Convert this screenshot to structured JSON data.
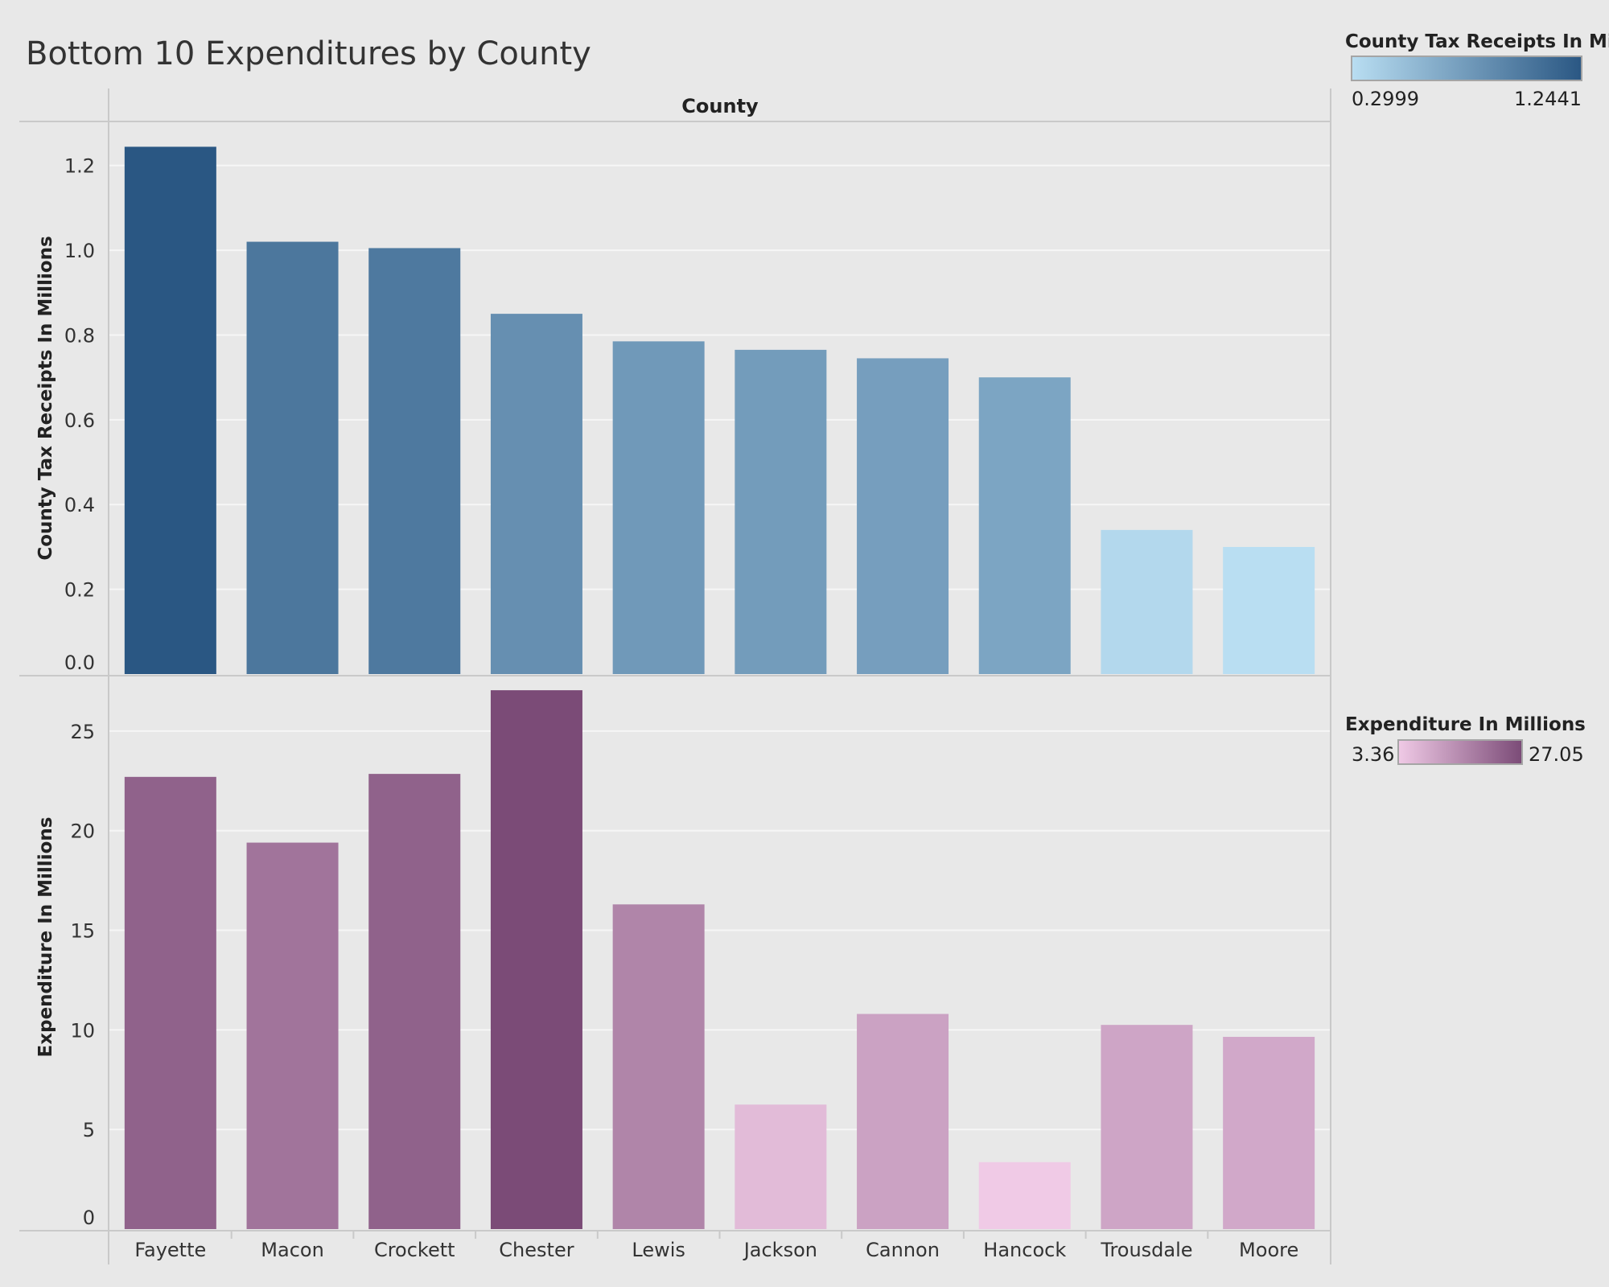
{
  "title": "Bottom 10 Expenditures by County",
  "column_header": "County",
  "chart_data": [
    {
      "type": "bar",
      "title": "Bottom 10 Expenditures by County",
      "xlabel": "County",
      "ylabel": "County Tax Receipts In Millions",
      "categories": [
        "Fayette",
        "Macon",
        "Crockett",
        "Chester",
        "Lewis",
        "Jackson",
        "Cannon",
        "Hancock",
        "Trousdale",
        "Moore"
      ],
      "values": [
        1.2441,
        1.02,
        1.005,
        0.85,
        0.785,
        0.765,
        0.745,
        0.7,
        0.34,
        0.2999
      ],
      "ylim": [
        0,
        1.3
      ],
      "yticks": [
        "0.0",
        "0.2",
        "0.4",
        "0.6",
        "0.8",
        "1.0",
        "1.2"
      ],
      "grid": true,
      "color_legend": {
        "title": "County Tax Receipts In Mi..",
        "min_label": "0.2999",
        "max_label": "1.2441",
        "min": 0.2999,
        "max": 1.2441,
        "color_low": "#b9def2",
        "color_high": "#2a5783"
      }
    },
    {
      "type": "bar",
      "xlabel": "County",
      "ylabel": "Expenditure In Millions",
      "categories": [
        "Fayette",
        "Macon",
        "Crockett",
        "Chester",
        "Lewis",
        "Jackson",
        "Cannon",
        "Hancock",
        "Trousdale",
        "Moore"
      ],
      "values": [
        22.7,
        19.4,
        22.85,
        27.05,
        16.3,
        6.25,
        10.8,
        3.36,
        10.25,
        9.65
      ],
      "ylim": [
        0,
        27.7
      ],
      "yticks": [
        "0",
        "5",
        "10",
        "15",
        "20",
        "25"
      ],
      "grid": true,
      "color_legend": {
        "title": "Expenditure In Millions",
        "min_label": "3.36",
        "max_label": "27.05",
        "min": 3.36,
        "max": 27.05,
        "color_low": "#f0cae6",
        "color_high": "#7b4b77"
      }
    }
  ]
}
